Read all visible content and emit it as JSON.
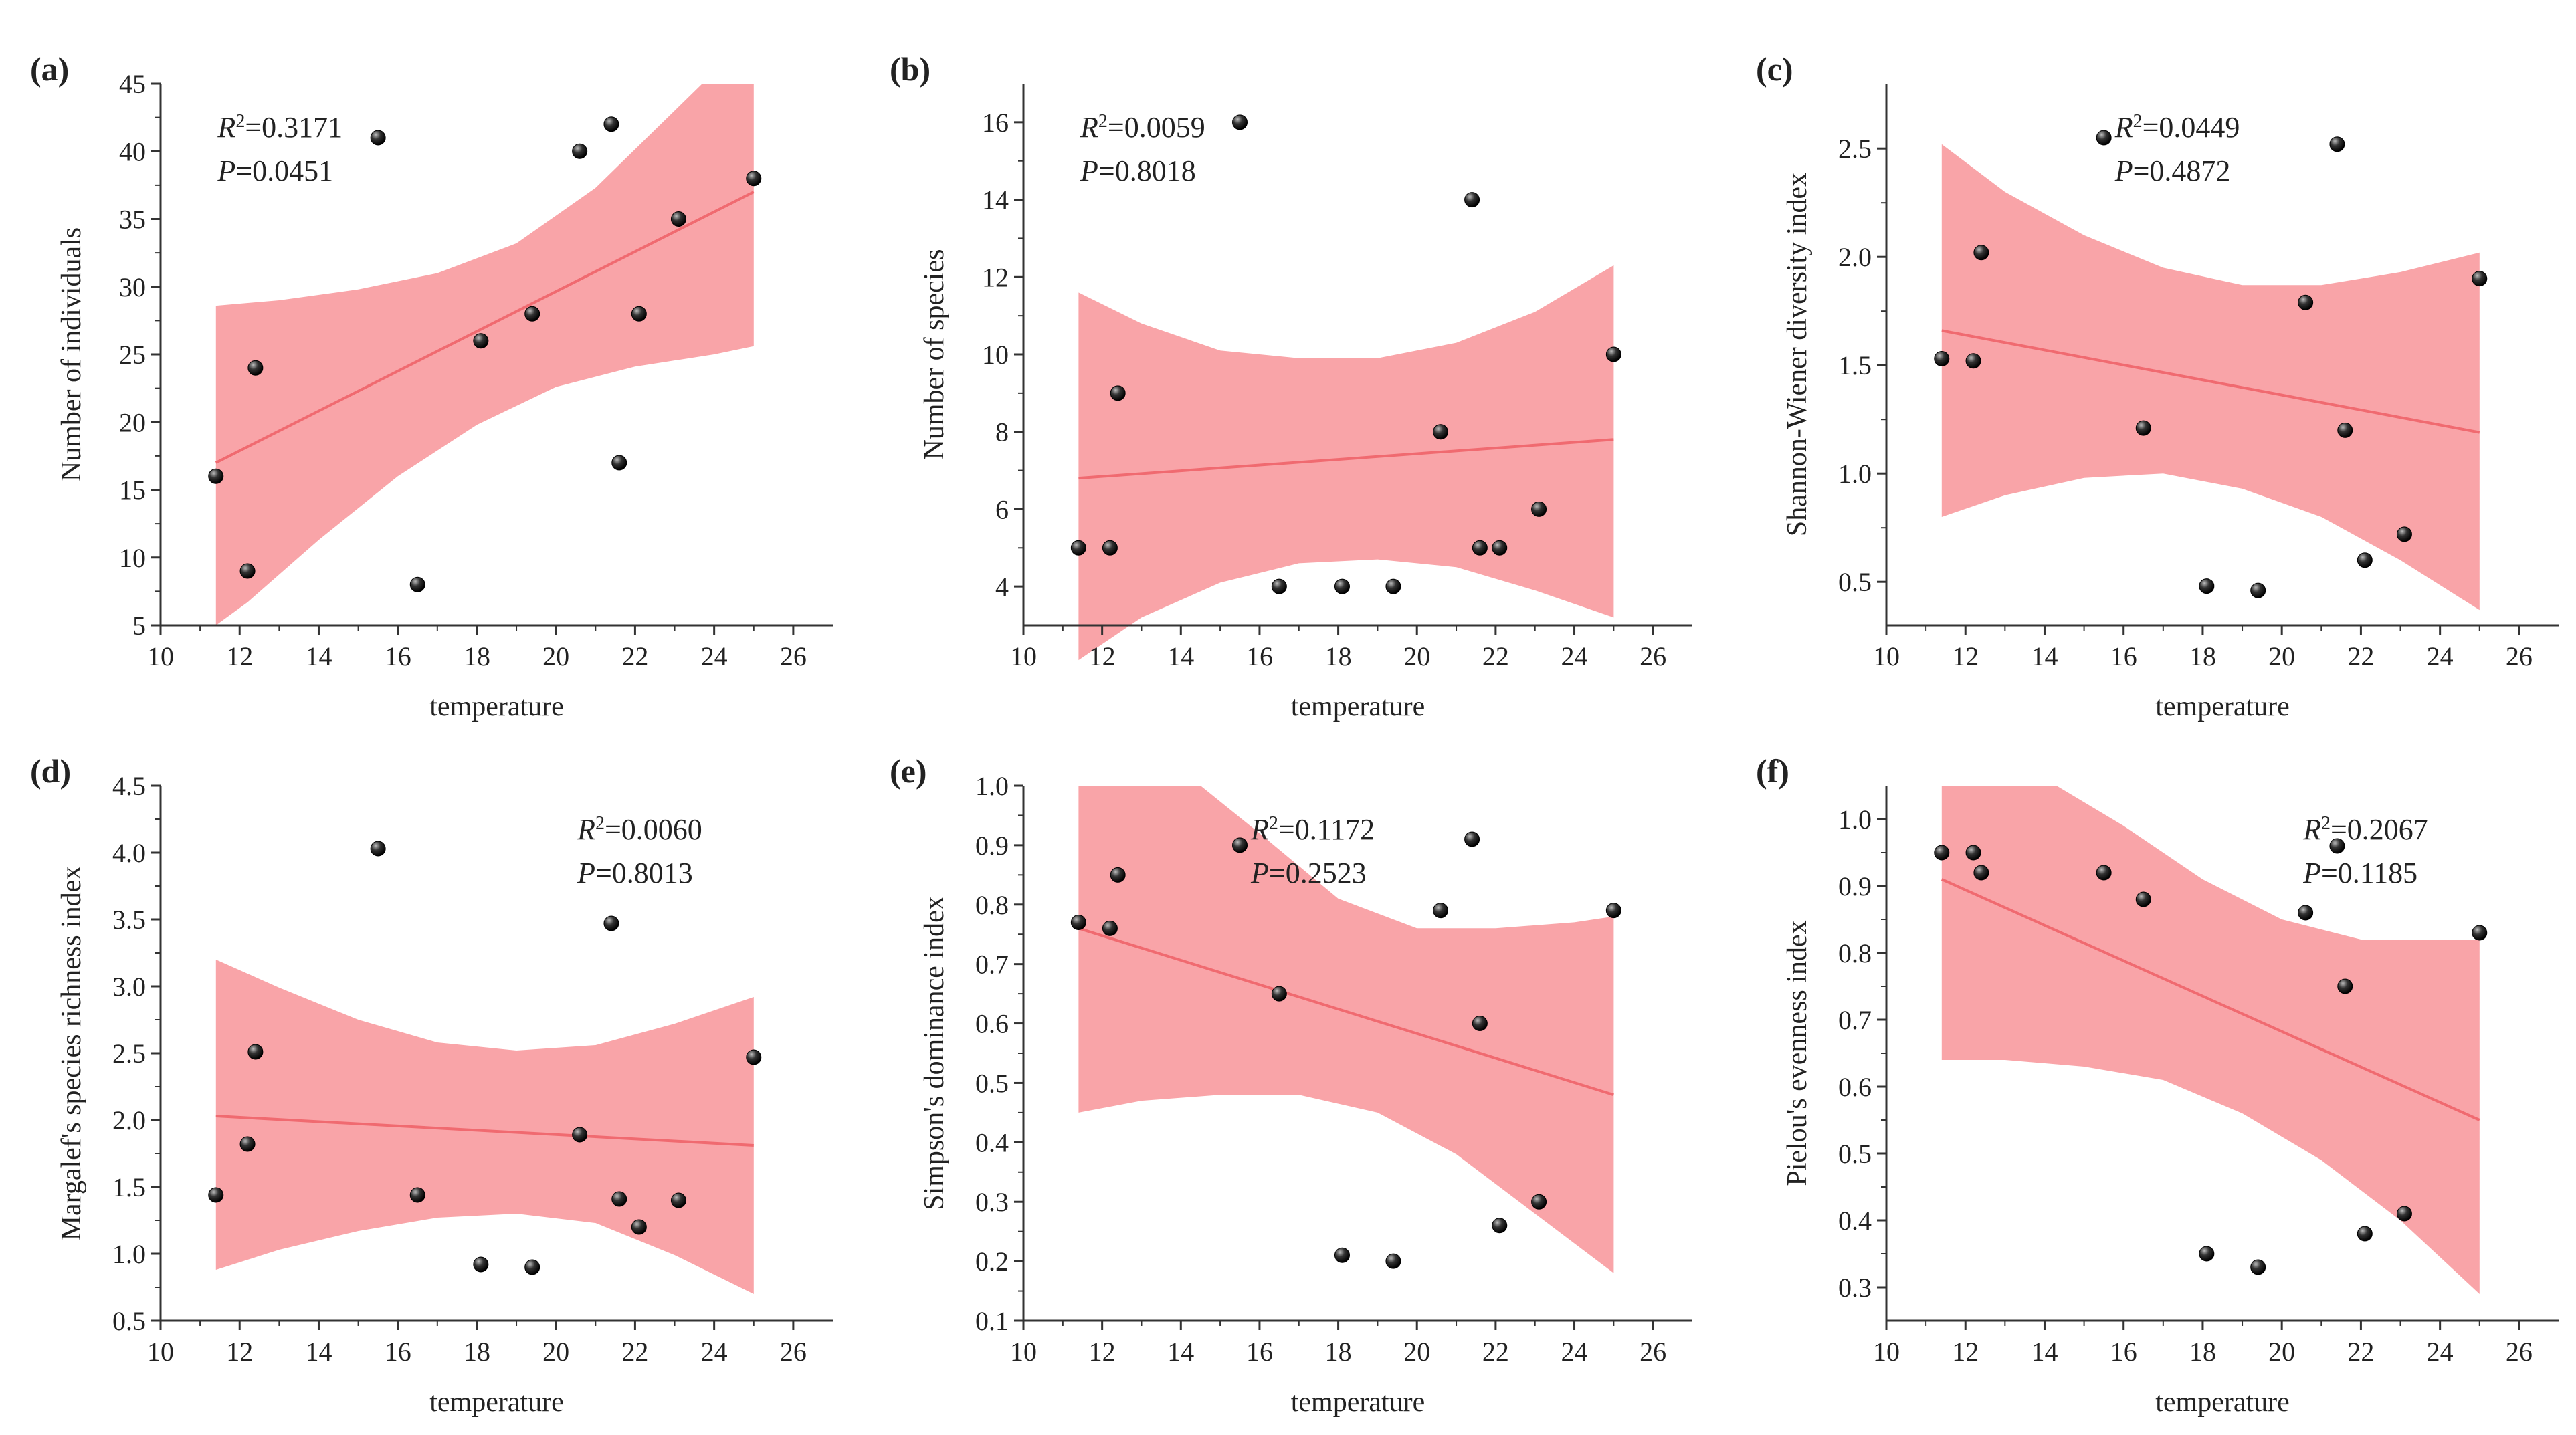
{
  "chart_data": [
    {
      "type": "scatter",
      "panel": "(a)",
      "xlabel": "temperature",
      "ylabel": "Number of individuals",
      "xlim": [
        10,
        27
      ],
      "xticks": [
        10,
        12,
        14,
        16,
        18,
        20,
        22,
        24,
        26
      ],
      "ylim": [
        5,
        45
      ],
      "yticks": [
        5,
        10,
        15,
        20,
        25,
        30,
        35,
        40,
        45
      ],
      "stats": {
        "r2": "=0.3171",
        "p": "=0.0451"
      },
      "stats_anchor": "top-left",
      "x": [
        11.4,
        12.2,
        12.4,
        15.5,
        16.5,
        18.1,
        19.4,
        20.6,
        21.4,
        21.6,
        22.1,
        23.1,
        25.0
      ],
      "y": [
        16,
        9,
        24,
        41,
        8,
        26,
        28,
        40,
        42,
        17,
        28,
        35,
        38
      ],
      "fit": {
        "x0": 11.4,
        "y0": 17.0,
        "x1": 25.0,
        "y1": 37.0
      },
      "band_upper": [
        [
          11.4,
          28.6
        ],
        [
          13.0,
          29.0
        ],
        [
          15.0,
          29.8
        ],
        [
          17.0,
          31.0
        ],
        [
          19.0,
          33.2
        ],
        [
          21.0,
          37.3
        ],
        [
          23.0,
          43.0
        ],
        [
          23.7,
          45.0
        ],
        [
          25.0,
          45.0
        ]
      ],
      "band_lower": [
        [
          11.4,
          5.0
        ],
        [
          12.2,
          6.7
        ],
        [
          14.0,
          11.3
        ],
        [
          16.0,
          16.0
        ],
        [
          18.0,
          19.8
        ],
        [
          20.0,
          22.6
        ],
        [
          22.0,
          24.1
        ],
        [
          24.0,
          25.0
        ],
        [
          25.0,
          25.6
        ]
      ]
    },
    {
      "type": "scatter",
      "panel": "(b)",
      "xlabel": "temperature",
      "ylabel": "Number of species",
      "xlim": [
        10,
        27
      ],
      "xticks": [
        10,
        12,
        14,
        16,
        18,
        20,
        22,
        24,
        26
      ],
      "ylim": [
        3,
        17
      ],
      "yticks": [
        4,
        6,
        8,
        10,
        12,
        14,
        16
      ],
      "stats": {
        "r2": "=0.0059",
        "p": "=0.8018"
      },
      "stats_anchor": "top-left",
      "x": [
        11.4,
        12.2,
        12.4,
        15.5,
        16.5,
        18.1,
        19.4,
        20.6,
        21.4,
        21.6,
        22.1,
        23.1,
        25.0
      ],
      "y": [
        5,
        5,
        9,
        16,
        4,
        4,
        4,
        8,
        14,
        5,
        5,
        6,
        10
      ],
      "fit": {
        "x0": 11.4,
        "y0": 6.8,
        "x1": 25.0,
        "y1": 7.8
      },
      "band_upper": [
        [
          11.4,
          11.6
        ],
        [
          13.0,
          10.8
        ],
        [
          15.0,
          10.1
        ],
        [
          17.0,
          9.9
        ],
        [
          19.0,
          9.9
        ],
        [
          21.0,
          10.3
        ],
        [
          23.0,
          11.1
        ],
        [
          25.0,
          12.3
        ]
      ],
      "band_lower": [
        [
          11.4,
          2.1
        ],
        [
          13.0,
          3.2
        ],
        [
          15.0,
          4.1
        ],
        [
          17.0,
          4.6
        ],
        [
          19.0,
          4.7
        ],
        [
          21.0,
          4.5
        ],
        [
          23.0,
          3.9
        ],
        [
          25.0,
          3.2
        ]
      ]
    },
    {
      "type": "scatter",
      "panel": "(c)",
      "xlabel": "temperature",
      "ylabel": "Shannon-Wiener diversity index",
      "xlim": [
        10,
        27
      ],
      "xticks": [
        10,
        12,
        14,
        16,
        18,
        20,
        22,
        24,
        26
      ],
      "ylim": [
        0.3,
        2.8
      ],
      "yticks": [
        0.5,
        1.0,
        1.5,
        2.0,
        2.5
      ],
      "stats": {
        "r2": "=0.0449",
        "p": "=0.4872"
      },
      "stats_anchor": "top-center",
      "x": [
        11.4,
        12.2,
        12.4,
        15.5,
        16.5,
        18.1,
        19.4,
        20.6,
        21.4,
        21.6,
        22.1,
        23.1,
        25.0
      ],
      "y": [
        1.53,
        1.52,
        2.02,
        2.55,
        1.21,
        0.48,
        0.46,
        1.79,
        2.52,
        1.2,
        0.6,
        0.72,
        1.9
      ],
      "fit": {
        "x0": 11.4,
        "y0": 1.66,
        "x1": 25.0,
        "y1": 1.19
      },
      "band_upper": [
        [
          11.4,
          2.52
        ],
        [
          13.0,
          2.3
        ],
        [
          15.0,
          2.1
        ],
        [
          17.0,
          1.95
        ],
        [
          19.0,
          1.87
        ],
        [
          21.0,
          1.87
        ],
        [
          23.0,
          1.93
        ],
        [
          25.0,
          2.02
        ]
      ],
      "band_lower": [
        [
          11.4,
          0.8
        ],
        [
          13.0,
          0.9
        ],
        [
          15.0,
          0.98
        ],
        [
          17.0,
          1.0
        ],
        [
          19.0,
          0.93
        ],
        [
          21.0,
          0.8
        ],
        [
          23.0,
          0.6
        ],
        [
          25.0,
          0.37
        ]
      ]
    },
    {
      "type": "scatter",
      "panel": "(d)",
      "xlabel": "temperature",
      "ylabel": "Margalef's species richness index",
      "xlim": [
        10,
        27
      ],
      "xticks": [
        10,
        12,
        14,
        16,
        18,
        20,
        22,
        24,
        26
      ],
      "ylim": [
        0.5,
        4.5
      ],
      "yticks": [
        0.5,
        1.0,
        1.5,
        2.0,
        2.5,
        3.0,
        3.5,
        4.0,
        4.5
      ],
      "stats": {
        "r2": "=0.0060",
        "p": "=0.8013"
      },
      "stats_anchor": "top-right",
      "x": [
        11.4,
        12.2,
        12.4,
        15.5,
        16.5,
        18.1,
        19.4,
        20.6,
        21.4,
        21.6,
        22.1,
        23.1,
        25.0
      ],
      "y": [
        1.44,
        1.82,
        2.51,
        4.03,
        1.44,
        0.92,
        0.9,
        1.89,
        3.47,
        1.41,
        1.2,
        1.4,
        2.47
      ],
      "fit": {
        "x0": 11.4,
        "y0": 2.03,
        "x1": 25.0,
        "y1": 1.81
      },
      "band_upper": [
        [
          11.4,
          3.2
        ],
        [
          13.0,
          2.99
        ],
        [
          15.0,
          2.75
        ],
        [
          17.0,
          2.58
        ],
        [
          19.0,
          2.52
        ],
        [
          21.0,
          2.56
        ],
        [
          23.0,
          2.72
        ],
        [
          25.0,
          2.92
        ]
      ],
      "band_lower": [
        [
          11.4,
          0.88
        ],
        [
          13.0,
          1.03
        ],
        [
          15.0,
          1.17
        ],
        [
          17.0,
          1.27
        ],
        [
          19.0,
          1.3
        ],
        [
          21.0,
          1.23
        ],
        [
          23.0,
          0.99
        ],
        [
          25.0,
          0.7
        ]
      ]
    },
    {
      "type": "scatter",
      "panel": "(e)",
      "xlabel": "temperature",
      "ylabel": "Simpson's dominance index",
      "xlim": [
        10,
        27
      ],
      "xticks": [
        10,
        12,
        14,
        16,
        18,
        20,
        22,
        24,
        26
      ],
      "ylim": [
        0.1,
        1.0
      ],
      "yticks": [
        0.1,
        0.2,
        0.3,
        0.4,
        0.5,
        0.6,
        0.7,
        0.8,
        0.9,
        1.0
      ],
      "stats": {
        "r2": "=0.1172",
        "p": "=0.2523"
      },
      "stats_anchor": "top-center",
      "x": [
        11.4,
        12.2,
        12.4,
        15.5,
        16.5,
        18.1,
        19.4,
        20.6,
        21.4,
        21.6,
        22.1,
        23.1,
        25.0
      ],
      "y": [
        0.77,
        0.76,
        0.85,
        0.9,
        0.65,
        0.21,
        0.2,
        0.79,
        0.91,
        0.6,
        0.26,
        0.3,
        0.79
      ],
      "fit": {
        "x0": 11.4,
        "y0": 0.76,
        "x1": 25.0,
        "y1": 0.48
      },
      "band_upper": [
        [
          11.4,
          1.0
        ],
        [
          14.5,
          1.0
        ],
        [
          16.0,
          0.92
        ],
        [
          18.0,
          0.81
        ],
        [
          20.0,
          0.76
        ],
        [
          22.0,
          0.76
        ],
        [
          24.0,
          0.77
        ],
        [
          25.0,
          0.78
        ]
      ],
      "band_lower": [
        [
          11.4,
          0.45
        ],
        [
          13.0,
          0.47
        ],
        [
          15.0,
          0.48
        ],
        [
          17.0,
          0.48
        ],
        [
          19.0,
          0.45
        ],
        [
          21.0,
          0.38
        ],
        [
          23.0,
          0.28
        ],
        [
          25.0,
          0.18
        ]
      ]
    },
    {
      "type": "scatter",
      "panel": "(f)",
      "xlabel": "temperature",
      "ylabel": "Pielou's evenness index",
      "xlim": [
        10,
        27
      ],
      "xticks": [
        10,
        12,
        14,
        16,
        18,
        20,
        22,
        24,
        26
      ],
      "ylim": [
        0.25,
        1.05
      ],
      "yticks": [
        0.3,
        0.4,
        0.5,
        0.6,
        0.7,
        0.8,
        0.9,
        1.0
      ],
      "stats": {
        "r2": "=0.2067",
        "p": "=0.1185"
      },
      "stats_anchor": "top-right",
      "x": [
        11.4,
        12.2,
        12.4,
        15.5,
        16.5,
        18.1,
        19.4,
        20.6,
        21.4,
        21.6,
        22.1,
        23.1,
        25.0
      ],
      "y": [
        0.95,
        0.95,
        0.92,
        0.92,
        0.88,
        0.35,
        0.33,
        0.86,
        0.96,
        0.75,
        0.38,
        0.41,
        0.83
      ],
      "fit": {
        "x0": 11.4,
        "y0": 0.91,
        "x1": 25.0,
        "y1": 0.55
      },
      "band_upper": [
        [
          11.4,
          1.05
        ],
        [
          14.3,
          1.05
        ],
        [
          16.0,
          0.99
        ],
        [
          18.0,
          0.91
        ],
        [
          20.0,
          0.85
        ],
        [
          22.0,
          0.82
        ],
        [
          24.0,
          0.82
        ],
        [
          25.0,
          0.82
        ]
      ],
      "band_lower": [
        [
          11.4,
          0.64
        ],
        [
          13.0,
          0.64
        ],
        [
          15.0,
          0.63
        ],
        [
          17.0,
          0.61
        ],
        [
          19.0,
          0.56
        ],
        [
          21.0,
          0.49
        ],
        [
          23.0,
          0.4
        ],
        [
          25.0,
          0.29
        ]
      ]
    }
  ],
  "colors": {
    "band": "#f9a4a8",
    "fit_line": "#f06a70",
    "axis": "#333333",
    "point_dark": "#000000",
    "point_light": "#bdbdbd"
  }
}
